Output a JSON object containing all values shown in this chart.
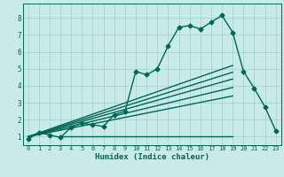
{
  "bg_color": "#c8eae8",
  "grid_color": "#a8d4d0",
  "line_color": "#006655",
  "xlabel": "Humidex (Indice chaleur)",
  "xlim": [
    -0.5,
    23.5
  ],
  "ylim": [
    0.5,
    8.85
  ],
  "yticks": [
    1,
    2,
    3,
    4,
    5,
    6,
    7,
    8
  ],
  "xticks": [
    0,
    1,
    2,
    3,
    4,
    5,
    6,
    7,
    8,
    9,
    10,
    11,
    12,
    13,
    14,
    15,
    16,
    17,
    18,
    19,
    20,
    21,
    22,
    23
  ],
  "main_curve": {
    "x": [
      0,
      1,
      2,
      3,
      4,
      5,
      6,
      7,
      8,
      9,
      10,
      11,
      12,
      13,
      14,
      15,
      16,
      17,
      18,
      19,
      20,
      21,
      22,
      23
    ],
    "y": [
      0.85,
      1.25,
      1.1,
      0.95,
      1.55,
      1.8,
      1.7,
      1.6,
      2.3,
      2.5,
      4.85,
      4.65,
      5.0,
      6.35,
      7.45,
      7.55,
      7.35,
      7.75,
      8.15,
      7.15,
      4.85,
      3.85,
      2.75,
      1.35
    ]
  },
  "fan_lines": [
    {
      "x": [
        0,
        19
      ],
      "y": [
        1.0,
        5.2
      ]
    },
    {
      "x": [
        0,
        19
      ],
      "y": [
        1.0,
        4.8
      ]
    },
    {
      "x": [
        0,
        19
      ],
      "y": [
        1.0,
        4.4
      ]
    },
    {
      "x": [
        0,
        19
      ],
      "y": [
        1.0,
        3.9
      ]
    },
    {
      "x": [
        0,
        19
      ],
      "y": [
        1.0,
        3.4
      ]
    }
  ],
  "flat_line": {
    "x": [
      3,
      19
    ],
    "y": [
      1.0,
      1.0
    ]
  },
  "marker_style": "D",
  "marker_size": 2.5,
  "line_width": 1.0
}
